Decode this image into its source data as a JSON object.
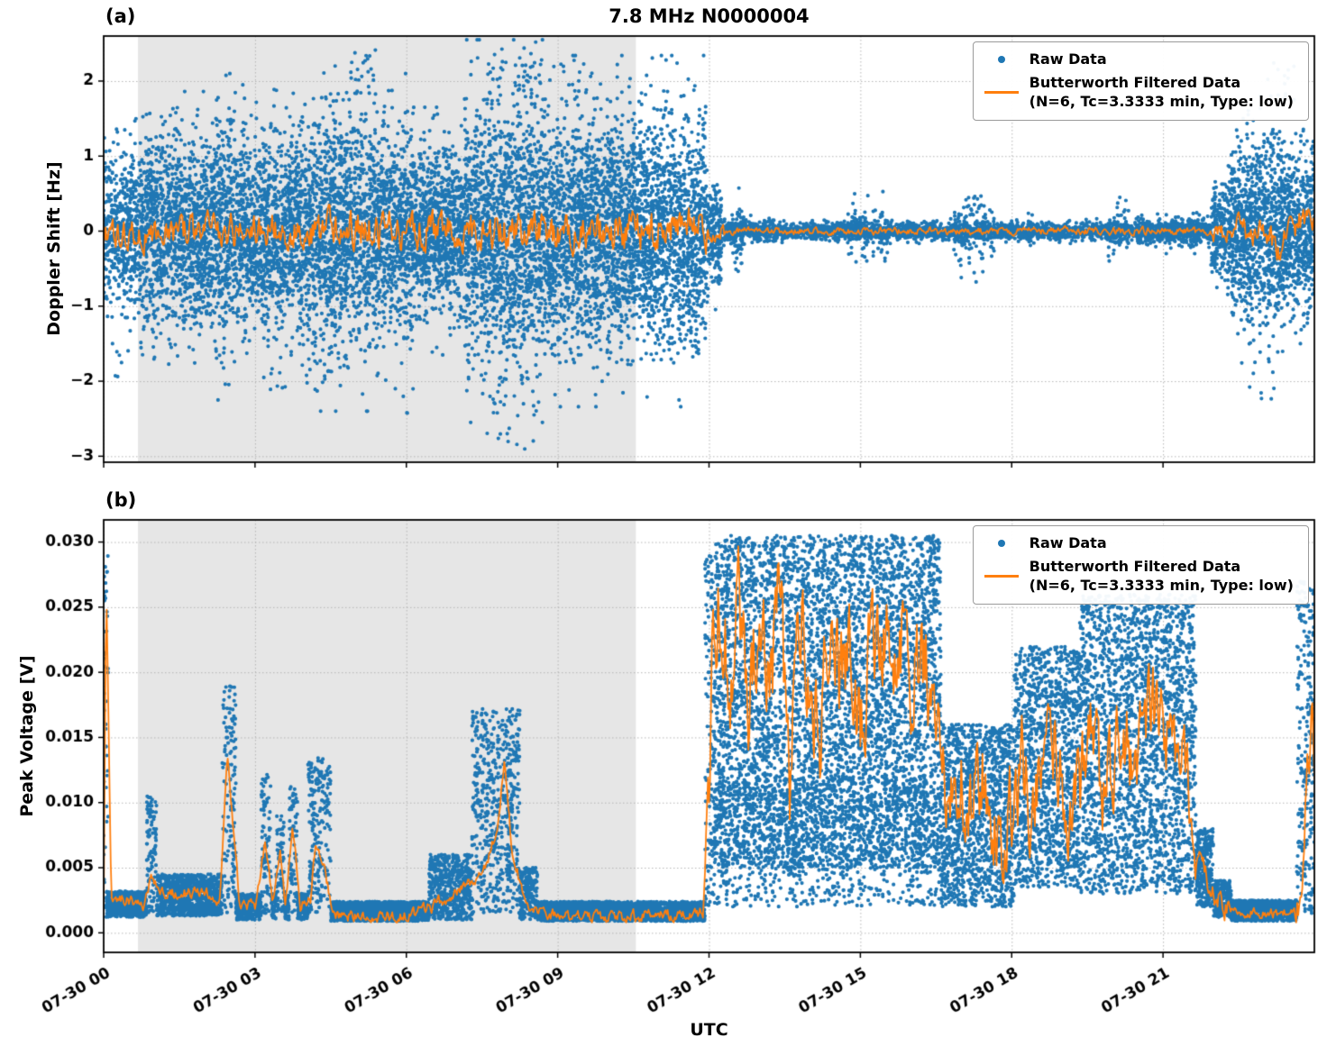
{
  "figure": {
    "xlabel": "UTC"
  },
  "legend": {
    "raw_label": "Raw Data",
    "filtered_label": "Butterworth Filtered Data",
    "filtered_sublabel": "(N=6, Tc=3.3333 min, Type: low)"
  },
  "colors": {
    "raw": "#1f77b4",
    "filtered": "#ff7f0e",
    "shade": "#e6e6e6",
    "grid": "#b5b5b5",
    "spine": "#000000"
  },
  "chart_data": [
    {
      "type": "scatter",
      "panel_label": "(a)",
      "title": "7.8 MHz N0000004",
      "ylabel": "Doppler Shift [Hz]",
      "xlim": [
        0,
        24
      ],
      "ylim": [
        -3.08,
        2.6
      ],
      "xticks": {
        "values": [
          0,
          3,
          6,
          9,
          12,
          15,
          18,
          21
        ],
        "labels": [
          "07-30 00",
          "07-30 03",
          "07-30 06",
          "07-30 09",
          "07-30 12",
          "07-30 15",
          "07-30 18",
          "07-30 21"
        ]
      },
      "yticks": {
        "values": [
          -3,
          -2,
          -1,
          0,
          1,
          2
        ],
        "labels": [
          "−3",
          "−2",
          "−1",
          "0",
          "1",
          "2"
        ]
      },
      "shade": [
        0.68,
        10.55
      ],
      "seed": 12345,
      "raw": {
        "gauss": [
          [
            0,
            0.7,
            0.5,
            700
          ],
          [
            0.7,
            2.2,
            0.62,
            900
          ],
          [
            2.2,
            2.6,
            0.75,
            900
          ],
          [
            2.6,
            4.15,
            0.65,
            900
          ],
          [
            4.15,
            5.35,
            0.8,
            900
          ],
          [
            5.35,
            6.15,
            0.7,
            900
          ],
          [
            6.15,
            7.15,
            0.55,
            900
          ],
          [
            7.15,
            8.85,
            0.85,
            950
          ],
          [
            8.85,
            11.95,
            0.78,
            950
          ],
          [
            11.95,
            12.25,
            0.35,
            700
          ],
          [
            12.25,
            13.45,
            0.07,
            350
          ],
          [
            12.45,
            12.7,
            0.22,
            250
          ],
          [
            13.45,
            21.95,
            0.055,
            300
          ],
          [
            14.75,
            15.15,
            0.18,
            150
          ],
          [
            15.25,
            15.55,
            0.22,
            150
          ],
          [
            16.85,
            17.3,
            0.28,
            180
          ],
          [
            17.3,
            17.65,
            0.22,
            150
          ],
          [
            18.3,
            18.45,
            0.12,
            100
          ],
          [
            19.9,
            20.35,
            0.15,
            150
          ],
          [
            20.5,
            21.95,
            0.1,
            200
          ],
          [
            21.95,
            22.35,
            0.35,
            600
          ],
          [
            22.35,
            23.4,
            0.6,
            900
          ],
          [
            23.4,
            24,
            0.5,
            900
          ]
        ],
        "band": [
          [
            4.9,
            5.4,
            1.8,
            2.45,
            30
          ],
          [
            7.6,
            8.7,
            1.8,
            2.45,
            30
          ],
          [
            7.6,
            8.6,
            -2.95,
            -1.9,
            25
          ],
          [
            9,
            9.6,
            1.7,
            2.3,
            20
          ],
          [
            0.1,
            0.5,
            -2,
            -1.5,
            15
          ],
          [
            3.3,
            4.2,
            -2.2,
            -1.6,
            15
          ],
          [
            5.9,
            6.2,
            -2.5,
            -1.8,
            12
          ],
          [
            8,
            8.15,
            -2.95,
            -2.5,
            20
          ],
          [
            22.6,
            23.2,
            -2.3,
            -1.7,
            15
          ],
          [
            23,
            23.6,
            1.6,
            2.25,
            25
          ]
        ]
      },
      "filtered": {
        "points": [
          [
            0,
            -0.08
          ],
          [
            1,
            -0.05
          ],
          [
            2,
            -0.02
          ],
          [
            3,
            0.02
          ],
          [
            4,
            0.03
          ],
          [
            5,
            0.02
          ],
          [
            6,
            0
          ],
          [
            7,
            0.02
          ],
          [
            8,
            0
          ],
          [
            9,
            0.02
          ],
          [
            10,
            0
          ],
          [
            11,
            0
          ],
          [
            12,
            0
          ],
          [
            14,
            0
          ],
          [
            16,
            0
          ],
          [
            18,
            0
          ],
          [
            20,
            0
          ],
          [
            21.5,
            0
          ],
          [
            22,
            -0.03
          ],
          [
            23,
            -0.08
          ],
          [
            23.3,
            -0.25
          ],
          [
            23.5,
            -0.1
          ],
          [
            23.8,
            0.15
          ],
          [
            24,
            0.2
          ]
        ],
        "noise": [
          [
            0,
            1.5,
            0.1
          ],
          [
            1.5,
            4,
            0.12
          ],
          [
            4,
            6,
            0.13
          ],
          [
            6,
            8.8,
            0.12
          ],
          [
            8.8,
            12,
            0.14
          ],
          [
            12,
            12.3,
            0.06
          ],
          [
            12.3,
            21.9,
            0.025
          ],
          [
            21.9,
            22.4,
            0.06
          ],
          [
            22.4,
            24,
            0.11
          ]
        ],
        "step": 0.02,
        "clamp": [
          -0.55,
          0.55
        ]
      }
    },
    {
      "type": "scatter",
      "panel_label": "(b)",
      "title": "",
      "ylabel": "Peak Voltage [V]",
      "xlabel": "UTC",
      "xlim": [
        0,
        24
      ],
      "ylim": [
        -0.0015,
        0.0317
      ],
      "xticks": {
        "values": [
          0,
          3,
          6,
          9,
          12,
          15,
          18,
          21
        ],
        "labels": [
          "07-30 00",
          "07-30 03",
          "07-30 06",
          "07-30 09",
          "07-30 12",
          "07-30 15",
          "07-30 18",
          "07-30 21"
        ]
      },
      "yticks": {
        "values": [
          0,
          0.005,
          0.01,
          0.015,
          0.02,
          0.025,
          0.03
        ],
        "labels": [
          "0.000",
          "0.005",
          "0.010",
          "0.015",
          "0.020",
          "0.025",
          "0.030"
        ]
      },
      "shade": [
        0.68,
        10.55
      ],
      "seed": 54321,
      "raw": {
        "gauss": [],
        "band": [
          [
            0,
            0.09,
            0.002,
            0.0295,
            500
          ],
          [
            0.05,
            0.85,
            0.0012,
            0.0032,
            700
          ],
          [
            0.85,
            1.05,
            0.0015,
            0.0105,
            500
          ],
          [
            1.05,
            2.35,
            0.0013,
            0.0045,
            700
          ],
          [
            2.35,
            2.62,
            0.0015,
            0.019,
            500
          ],
          [
            2.62,
            3.12,
            0.001,
            0.003,
            700
          ],
          [
            3.12,
            3.32,
            0.0015,
            0.0122,
            450
          ],
          [
            3.32,
            3.42,
            0.001,
            0.003,
            600
          ],
          [
            3.42,
            3.58,
            0.0015,
            0.009,
            450
          ],
          [
            3.58,
            3.68,
            0.001,
            0.003,
            600
          ],
          [
            3.68,
            3.84,
            0.0015,
            0.0112,
            450
          ],
          [
            3.84,
            4.05,
            0.001,
            0.003,
            700
          ],
          [
            4.05,
            4.5,
            0.0015,
            0.0135,
            500
          ],
          [
            4.5,
            6.45,
            0.0009,
            0.0024,
            700
          ],
          [
            6.45,
            7.3,
            0.001,
            0.006,
            700
          ],
          [
            7.3,
            8.25,
            0.0015,
            0.0172,
            600
          ],
          [
            8.25,
            8.6,
            0.001,
            0.005,
            600
          ],
          [
            8.6,
            11.92,
            0.0009,
            0.0024,
            700
          ],
          [
            11.92,
            12.1,
            0.002,
            0.029,
            700
          ],
          [
            12.1,
            16.6,
            0.005,
            0.0305,
            1100
          ],
          [
            12.1,
            16.6,
            0.002,
            0.012,
            200
          ],
          [
            16.6,
            18.05,
            0.002,
            0.016,
            900
          ],
          [
            18.05,
            19.35,
            0.0035,
            0.022,
            1000
          ],
          [
            19.35,
            21.65,
            0.003,
            0.026,
            1000
          ],
          [
            21.65,
            22,
            0.002,
            0.008,
            800
          ],
          [
            22,
            22.35,
            0.0012,
            0.004,
            700
          ],
          [
            22.35,
            23.65,
            0.0009,
            0.0025,
            700
          ],
          [
            23.65,
            24,
            0.0015,
            0.027,
            700
          ]
        ]
      },
      "filtered": {
        "points": [
          [
            0,
            0.002
          ],
          [
            0.05,
            0.027
          ],
          [
            0.15,
            0.003
          ],
          [
            0.5,
            0.0025
          ],
          [
            0.8,
            0.002
          ],
          [
            0.95,
            0.0045
          ],
          [
            1.1,
            0.003
          ],
          [
            1.5,
            0.003
          ],
          [
            2,
            0.0032
          ],
          [
            2.3,
            0.0025
          ],
          [
            2.45,
            0.0135
          ],
          [
            2.55,
            0.009
          ],
          [
            2.7,
            0.002
          ],
          [
            3,
            0.002
          ],
          [
            3.2,
            0.007
          ],
          [
            3.35,
            0.002
          ],
          [
            3.5,
            0.0065
          ],
          [
            3.6,
            0.002
          ],
          [
            3.75,
            0.008
          ],
          [
            3.9,
            0.002
          ],
          [
            4.1,
            0.0025
          ],
          [
            4.2,
            0.007
          ],
          [
            4.35,
            0.0055
          ],
          [
            4.55,
            0.0015
          ],
          [
            5,
            0.0012
          ],
          [
            5.5,
            0.0012
          ],
          [
            6,
            0.0013
          ],
          [
            6.5,
            0.002
          ],
          [
            7,
            0.003
          ],
          [
            7.5,
            0.0045
          ],
          [
            7.8,
            0.008
          ],
          [
            7.95,
            0.0135
          ],
          [
            8.1,
            0.006
          ],
          [
            8.4,
            0.002
          ],
          [
            9,
            0.0012
          ],
          [
            9.5,
            0.0012
          ],
          [
            10,
            0.0012
          ],
          [
            10.5,
            0.0013
          ],
          [
            11,
            0.0013
          ],
          [
            11.5,
            0.0014
          ],
          [
            11.88,
            0.0015
          ],
          [
            12,
            0.01
          ],
          [
            12.1,
            0.024
          ],
          [
            12.25,
            0.026
          ],
          [
            12.4,
            0.018
          ],
          [
            12.6,
            0.025
          ],
          [
            12.8,
            0.015
          ],
          [
            13,
            0.026
          ],
          [
            13.2,
            0.018
          ],
          [
            13.4,
            0.027
          ],
          [
            13.6,
            0.012
          ],
          [
            13.8,
            0.025
          ],
          [
            14,
            0.02
          ],
          [
            14.2,
            0.015
          ],
          [
            14.4,
            0.024
          ],
          [
            14.6,
            0.019
          ],
          [
            14.8,
            0.023
          ],
          [
            15,
            0.016
          ],
          [
            15.2,
            0.022
          ],
          [
            15.4,
            0.024
          ],
          [
            15.6,
            0.02
          ],
          [
            15.8,
            0.023
          ],
          [
            16,
            0.019
          ],
          [
            16.2,
            0.022
          ],
          [
            16.4,
            0.018
          ],
          [
            16.6,
            0.013
          ],
          [
            16.8,
            0.01
          ],
          [
            17,
            0.012
          ],
          [
            17.2,
            0.008
          ],
          [
            17.4,
            0.013
          ],
          [
            17.6,
            0.009
          ],
          [
            17.8,
            0.006
          ],
          [
            18,
            0.01
          ],
          [
            18.2,
            0.013
          ],
          [
            18.4,
            0.009
          ],
          [
            18.6,
            0.012
          ],
          [
            18.8,
            0.015
          ],
          [
            19,
            0.011
          ],
          [
            19.2,
            0.008
          ],
          [
            19.4,
            0.012
          ],
          [
            19.6,
            0.015
          ],
          [
            19.8,
            0.01
          ],
          [
            20,
            0.013
          ],
          [
            20.2,
            0.017
          ],
          [
            20.4,
            0.012
          ],
          [
            20.6,
            0.015
          ],
          [
            20.8,
            0.018
          ],
          [
            21,
            0.014
          ],
          [
            21.2,
            0.016
          ],
          [
            21.4,
            0.012
          ],
          [
            21.6,
            0.008
          ],
          [
            21.8,
            0.005
          ],
          [
            22,
            0.003
          ],
          [
            22.2,
            0.002
          ],
          [
            22.5,
            0.0015
          ],
          [
            23,
            0.0015
          ],
          [
            23.5,
            0.0015
          ],
          [
            23.75,
            0.002
          ],
          [
            23.85,
            0.012
          ],
          [
            23.95,
            0.016
          ],
          [
            24,
            0.013
          ]
        ],
        "noise": [
          [
            0,
            11.9,
            0.00025
          ],
          [
            11.9,
            16.6,
            0.0022
          ],
          [
            16.6,
            21.7,
            0.0018
          ],
          [
            21.7,
            22.3,
            0.0005
          ],
          [
            22.3,
            23.6,
            0.0002
          ],
          [
            23.6,
            24,
            0.0012
          ]
        ],
        "step": 0.02,
        "clamp": [
          0.0008,
          0.031
        ]
      }
    }
  ]
}
